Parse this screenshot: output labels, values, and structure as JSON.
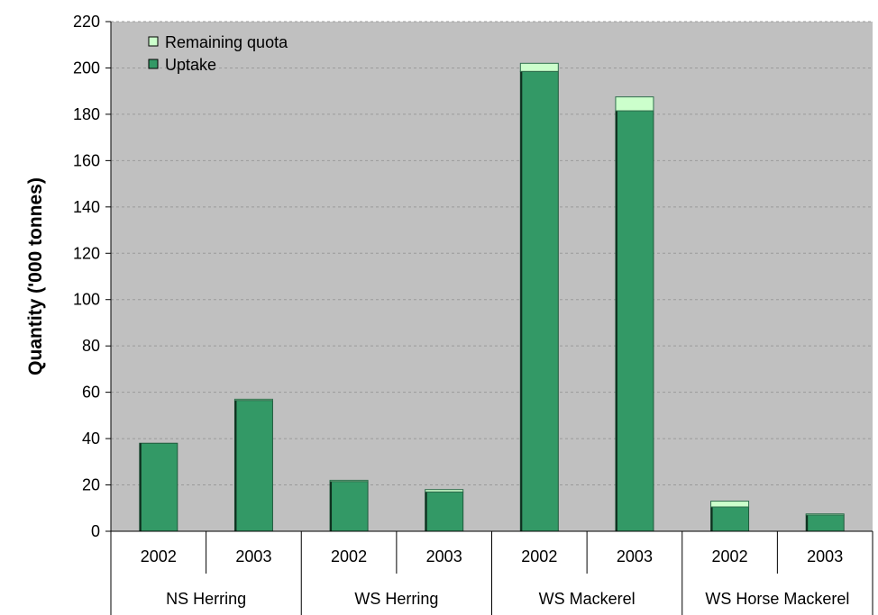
{
  "chart_data": {
    "type": "bar",
    "stacked": true,
    "groups": [
      "NS Herring",
      "WS Herring",
      "WS Mackerel",
      "WS Horse Mackerel"
    ],
    "categories": [
      "2002",
      "2003",
      "2002",
      "2003",
      "2002",
      "2003",
      "2002",
      "2003"
    ],
    "category_groups": [
      0,
      0,
      1,
      1,
      2,
      2,
      3,
      3
    ],
    "series": [
      {
        "name": "Uptake",
        "values": [
          38,
          56.5,
          21.5,
          17,
          198.5,
          181.5,
          10.5,
          7
        ],
        "color": "#339966"
      },
      {
        "name": "Remaining quota",
        "values": [
          0,
          0.5,
          0.5,
          1,
          3.5,
          6,
          2.5,
          0.5
        ],
        "color": "#ccffcc"
      }
    ],
    "legend_entries": [
      "Remaining quota",
      "Uptake"
    ],
    "ylabel": "Quantity ('000 tonnes)",
    "ylim": [
      0,
      220
    ],
    "yticks": [
      0,
      20,
      40,
      60,
      80,
      100,
      120,
      140,
      160,
      180,
      200,
      220
    ],
    "grid": true,
    "plot_background": "#c0c0c0",
    "legend_position": "top-left"
  }
}
